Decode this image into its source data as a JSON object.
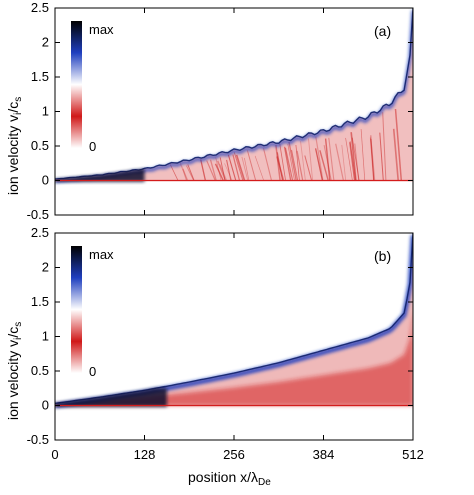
{
  "chart_data": [
    {
      "type": "heatmap",
      "panel_label": "(a)",
      "ylabel": {
        "main": "ion velocity v",
        "sub1": "i",
        "mid": "/c",
        "sub2": "s"
      },
      "xlim": [
        0,
        512
      ],
      "ylim": [
        -0.5,
        2.5
      ],
      "xticks": [
        0,
        128,
        256,
        384,
        512
      ],
      "yticks": [
        -0.5,
        0,
        0.5,
        1,
        1.5,
        2,
        2.5
      ],
      "ytick_labels": [
        "-0.5",
        "0",
        "0.5",
        "1",
        "1.5",
        "2",
        "2.5"
      ],
      "colorbar": {
        "max_label": "max",
        "min_label": "0",
        "colors": [
          "#000000",
          "#1f3fbf",
          "#ffffff",
          "#d01818",
          "#ffffff"
        ]
      },
      "front_curve": {
        "x": [
          0,
          64,
          128,
          192,
          256,
          320,
          384,
          448,
          480,
          500,
          508,
          512
        ],
        "y": [
          0.02,
          0.08,
          0.17,
          0.3,
          0.44,
          0.56,
          0.72,
          0.93,
          1.12,
          1.35,
          1.8,
          2.5
        ]
      },
      "dense_core": {
        "x": [
          0,
          128
        ],
        "y": [
          -0.02,
          0.2
        ]
      },
      "turbulent": true
    },
    {
      "type": "heatmap",
      "panel_label": "(b)",
      "ylabel": {
        "main": "ion velocity v",
        "sub1": "i",
        "mid": "/c",
        "sub2": "s"
      },
      "xlabel": {
        "main": "position x/λ",
        "sub": "De"
      },
      "xlim": [
        0,
        512
      ],
      "ylim": [
        -0.5,
        2.5
      ],
      "xticks": [
        0,
        128,
        256,
        384,
        512
      ],
      "xtick_labels": [
        "0",
        "128",
        "256",
        "384",
        "512"
      ],
      "yticks": [
        -0.5,
        0,
        0.5,
        1,
        1.5,
        2,
        2.5
      ],
      "ytick_labels": [
        "-0.5",
        "0",
        "0.5",
        "1",
        "1.5",
        "2",
        "2.5"
      ],
      "colorbar": {
        "max_label": "max",
        "min_label": "0",
        "colors": [
          "#000000",
          "#1f3fbf",
          "#ffffff",
          "#d01818",
          "#ffffff"
        ]
      },
      "front_curve": {
        "x": [
          0,
          64,
          128,
          192,
          256,
          320,
          384,
          448,
          480,
          500,
          508,
          512
        ],
        "y": [
          0.03,
          0.12,
          0.22,
          0.34,
          0.47,
          0.62,
          0.8,
          0.98,
          1.12,
          1.35,
          1.8,
          2.5
        ]
      },
      "dense_core": {
        "x": [
          0,
          160
        ],
        "y": [
          -0.02,
          0.25
        ]
      },
      "turbulent": false
    }
  ]
}
